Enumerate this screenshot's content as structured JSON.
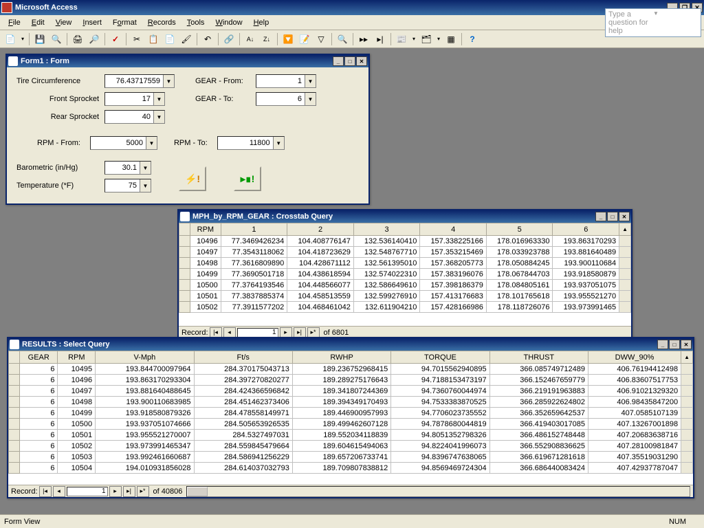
{
  "app": {
    "title": "Microsoft Access"
  },
  "menus": [
    "File",
    "Edit",
    "View",
    "Insert",
    "Format",
    "Records",
    "Tools",
    "Window",
    "Help"
  ],
  "helpbox": "Type a question for help",
  "toolbar_icons": [
    "view",
    "save",
    "search",
    "print",
    "preview",
    "spell",
    "cut",
    "copy",
    "paste",
    "format",
    "undo",
    "link",
    "sortaz",
    "sortza",
    "filter",
    "filterform",
    "find",
    "goto",
    "nav1",
    "nav2",
    "new",
    "db",
    "layout",
    "help"
  ],
  "form1": {
    "title": "Form1 : Form",
    "tire_label": "Tire Circumference",
    "tire_val": "76.43717559",
    "fs_label": "Front Sprocket",
    "fs_val": "17",
    "rs_label": "Rear Sprocket",
    "rs_val": "40",
    "gear_from_label": "GEAR - From:",
    "gear_from_val": "1",
    "gear_to_label": "GEAR - To:",
    "gear_to_val": "6",
    "rpm_from_label": "RPM - From:",
    "rpm_from_val": "5000",
    "rpm_to_label": "RPM - To:",
    "rpm_to_val": "11800",
    "baro_label": "Barometric (in/Hg)",
    "baro_val": "30.1",
    "temp_label": "Temperature (*F)",
    "temp_val": "75"
  },
  "crosstab": {
    "title": "MPH_by_RPM_GEAR : Crosstab Query",
    "headers": [
      "RPM",
      "1",
      "2",
      "3",
      "4",
      "5",
      "6"
    ],
    "rows": [
      [
        "10496",
        "77.3469426234",
        "104.408776147",
        "132.536140410",
        "157.338225166",
        "178.016963330",
        "193.863170293"
      ],
      [
        "10497",
        "77.3543118062",
        "104.418723629",
        "132.548767710",
        "157.353215469",
        "178.033923788",
        "193.881640489"
      ],
      [
        "10498",
        "77.3616809890",
        "104.428671112",
        "132.561395010",
        "157.368205773",
        "178.050884245",
        "193.900110684"
      ],
      [
        "10499",
        "77.3690501718",
        "104.438618594",
        "132.574022310",
        "157.383196076",
        "178.067844703",
        "193.918580879"
      ],
      [
        "10500",
        "77.3764193546",
        "104.448566077",
        "132.586649610",
        "157.398186379",
        "178.084805161",
        "193.937051075"
      ],
      [
        "10501",
        "77.3837885374",
        "104.458513559",
        "132.599276910",
        "157.413176683",
        "178.101765618",
        "193.955521270"
      ],
      [
        "10502",
        "77.3911577202",
        "104.468461042",
        "132.611904210",
        "157.428166986",
        "178.118726076",
        "193.973991465"
      ]
    ],
    "rec_current": "1",
    "rec_of": "of  6801"
  },
  "results": {
    "title": "RESULTS : Select Query",
    "headers": [
      "GEAR",
      "RPM",
      "V-Mph",
      "Ft/s",
      "RWHP",
      "TORQUE",
      "THRUST",
      "DWW_90%"
    ],
    "rows": [
      [
        "6",
        "10495",
        "193.844700097964",
        "284.370175043713",
        "189.236752968415",
        "94.7015562940895",
        "366.085749712489",
        "406.76194412498"
      ],
      [
        "6",
        "10496",
        "193.863170293304",
        "284.397270820277",
        "189.289275176643",
        "94.7188153473197",
        "366.152467659779",
        "406.83607517753"
      ],
      [
        "6",
        "10497",
        "193.881640488645",
        "284.424366596842",
        "189.341807244369",
        "94.7360760044974",
        "366.219191963883",
        "406.91021329320"
      ],
      [
        "6",
        "10498",
        "193.900110683985",
        "284.451462373406",
        "189.394349170493",
        "94.7533383870525",
        "366.285922624802",
        "406.98435847200"
      ],
      [
        "6",
        "10499",
        "193.918580879326",
        "284.478558149971",
        "189.446900957993",
        "94.7706023735552",
        "366.352659642537",
        "407.0585107139"
      ],
      [
        "6",
        "10500",
        "193.937051074666",
        "284.505653926535",
        "189.499462607128",
        "94.7878680044819",
        "366.419403017085",
        "407.13267001898"
      ],
      [
        "6",
        "10501",
        "193.955521270007",
        "284.5327497031",
        "189.552034118839",
        "94.8051352798326",
        "366.486152748448",
        "407.20683638716"
      ],
      [
        "6",
        "10502",
        "193.973991465347",
        "284.559845479664",
        "189.604615494063",
        "94.8224041996073",
        "366.552908836625",
        "407.28100981847"
      ],
      [
        "6",
        "10503",
        "193.992461660687",
        "284.586941256229",
        "189.657206733741",
        "94.8396747638065",
        "366.619671281618",
        "407.35519031290"
      ],
      [
        "6",
        "10504",
        "194.010931856028",
        "284.614037032793",
        "189.709807838812",
        "94.8569469724304",
        "366.686440083424",
        "407.42937787047"
      ]
    ],
    "rec_current": "1",
    "rec_of": "of  40806"
  },
  "status": {
    "left": "Form View",
    "num": "NUM"
  },
  "colors": {
    "titlebar": "#0a246a",
    "win_bg": "#ece9d8",
    "grid_border": "#c0c0c0"
  }
}
